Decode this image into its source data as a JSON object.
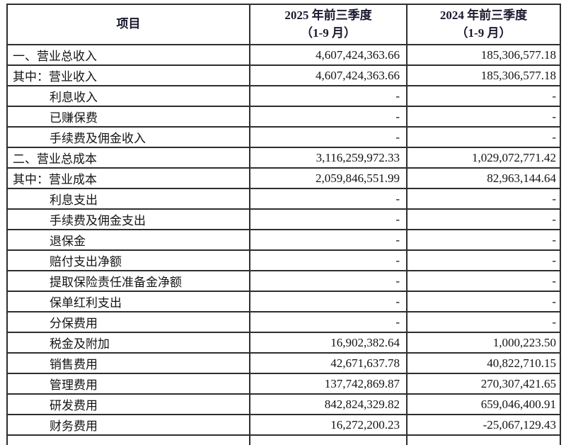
{
  "table": {
    "headers": [
      {
        "line1": "项目",
        "line2": ""
      },
      {
        "line1": "2025 年前三季度",
        "line2": "（1-9 月）"
      },
      {
        "line1": "2024 年前三季度",
        "line2": "（1-9 月）"
      }
    ],
    "rows": [
      {
        "label": "一、营业总收入",
        "indent": "main",
        "v2025": "4,607,424,363.66",
        "v2024": "185,306,577.18"
      },
      {
        "label": "其中：营业收入",
        "indent": "main",
        "v2025": "4,607,424,363.66",
        "v2024": "185,306,577.18"
      },
      {
        "label": "利息收入",
        "indent": "sub",
        "v2025": "-",
        "v2024": "-"
      },
      {
        "label": "已赚保费",
        "indent": "sub",
        "v2025": "-",
        "v2024": "-"
      },
      {
        "label": "手续费及佣金收入",
        "indent": "sub",
        "v2025": "-",
        "v2024": "-"
      },
      {
        "label": "二、营业总成本",
        "indent": "main",
        "v2025": "3,116,259,972.33",
        "v2024": "1,029,072,771.42"
      },
      {
        "label": "其中：营业成本",
        "indent": "main",
        "v2025": "2,059,846,551.99",
        "v2024": "82,963,144.64"
      },
      {
        "label": "利息支出",
        "indent": "sub",
        "v2025": "-",
        "v2024": "-"
      },
      {
        "label": "手续费及佣金支出",
        "indent": "sub",
        "v2025": "-",
        "v2024": "-"
      },
      {
        "label": "退保金",
        "indent": "sub",
        "v2025": "-",
        "v2024": "-"
      },
      {
        "label": "赔付支出净额",
        "indent": "sub",
        "v2025": "-",
        "v2024": "-"
      },
      {
        "label": "提取保险责任准备金净额",
        "indent": "sub",
        "v2025": "-",
        "v2024": "-"
      },
      {
        "label": "保单红利支出",
        "indent": "sub",
        "v2025": "-",
        "v2024": "-"
      },
      {
        "label": "分保费用",
        "indent": "sub",
        "v2025": "-",
        "v2024": "-"
      },
      {
        "label": "税金及附加",
        "indent": "sub",
        "v2025": "16,902,382.64",
        "v2024": "1,000,223.50"
      },
      {
        "label": "销售费用",
        "indent": "sub",
        "v2025": "42,671,637.78",
        "v2024": "40,822,710.15"
      },
      {
        "label": "管理费用",
        "indent": "sub",
        "v2025": "137,742,869.87",
        "v2024": "270,307,421.65"
      },
      {
        "label": "研发费用",
        "indent": "sub",
        "v2025": "842,824,329.82",
        "v2024": "659,046,400.91"
      },
      {
        "label": "财务费用",
        "indent": "sub",
        "v2025": "16,272,200.23",
        "v2024": "-25,067,129.43"
      }
    ],
    "partial_row_present": true
  },
  "colors": {
    "background": "#ffffff",
    "border": "#2e2e2e",
    "header_text": "#1a1a2e",
    "body_text": "#141414"
  }
}
